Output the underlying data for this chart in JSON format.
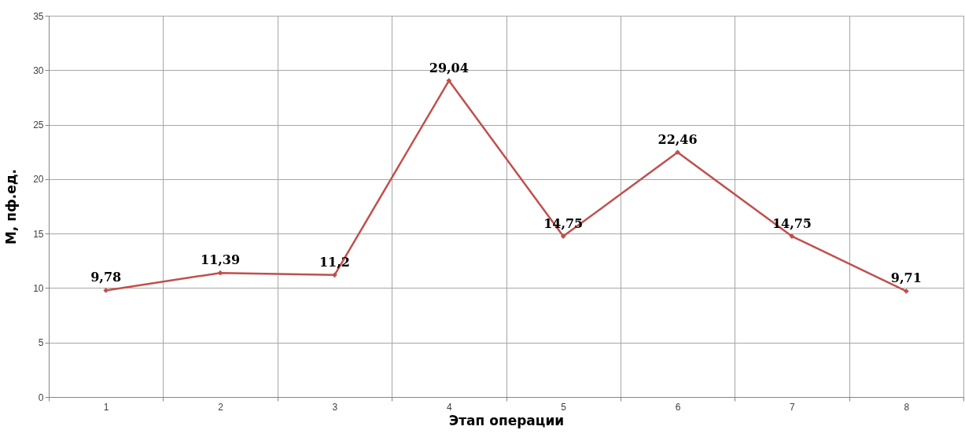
{
  "chart_data": {
    "type": "line",
    "xlabel": "Этап операции",
    "ylabel": "M, пф.ед.",
    "categories": [
      "1",
      "2",
      "3",
      "4",
      "5",
      "6",
      "7",
      "8"
    ],
    "values": [
      9.78,
      11.39,
      11.2,
      29.04,
      14.75,
      22.46,
      14.75,
      9.71
    ],
    "value_labels": [
      "9,78",
      "11,39",
      "11,2",
      "29,04",
      "14,75",
      "22,46",
      "14,75",
      "9,71"
    ],
    "color": "#c0504d",
    "marker": "diamond",
    "ylim": [
      0,
      35
    ],
    "yticks": [
      0,
      5,
      10,
      15,
      20,
      25,
      30,
      35
    ],
    "grid": true
  }
}
